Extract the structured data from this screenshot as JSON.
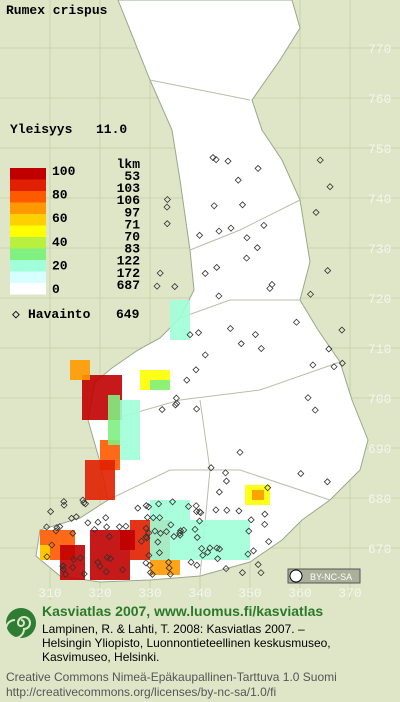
{
  "header": {
    "title": "Rumex crispus",
    "frequency_label": "Yleisyys",
    "frequency_value": "11.0"
  },
  "legend": {
    "scale": [
      "100",
      "80",
      "60",
      "40",
      "20",
      "0"
    ],
    "count_header": "lkm",
    "counts": [
      "53",
      "103",
      "106",
      "97",
      "71",
      "70",
      "83",
      "122",
      "172",
      "687"
    ],
    "observation_label": "Havainto",
    "observation_count": "649"
  },
  "grid": {
    "north": [
      "770",
      "760",
      "750",
      "740",
      "730",
      "720",
      "710",
      "700",
      "690",
      "680",
      "670"
    ],
    "east": [
      "310",
      "320",
      "330",
      "340",
      "350",
      "360",
      "370"
    ]
  },
  "license_badge": "BY-NC-SA",
  "footer": {
    "site": "Kasviatlas 2007, www.luomus.fi/kasviatlas",
    "citation": [
      "Lampinen, R. & Lahti, T. 2008: Kasviatlas 2007. –",
      "Helsingin Yliopisto, Luonnontieteellinen keskusmuseo,",
      "Kasvimuseo, Helsinki."
    ],
    "license": [
      "Creative Commons Nimeä-Epäkaupallinen-Tarttuva 1.0 Suomi",
      "http://creativecommons.org/licenses/by-nc-sa/1.0/fi"
    ]
  }
}
